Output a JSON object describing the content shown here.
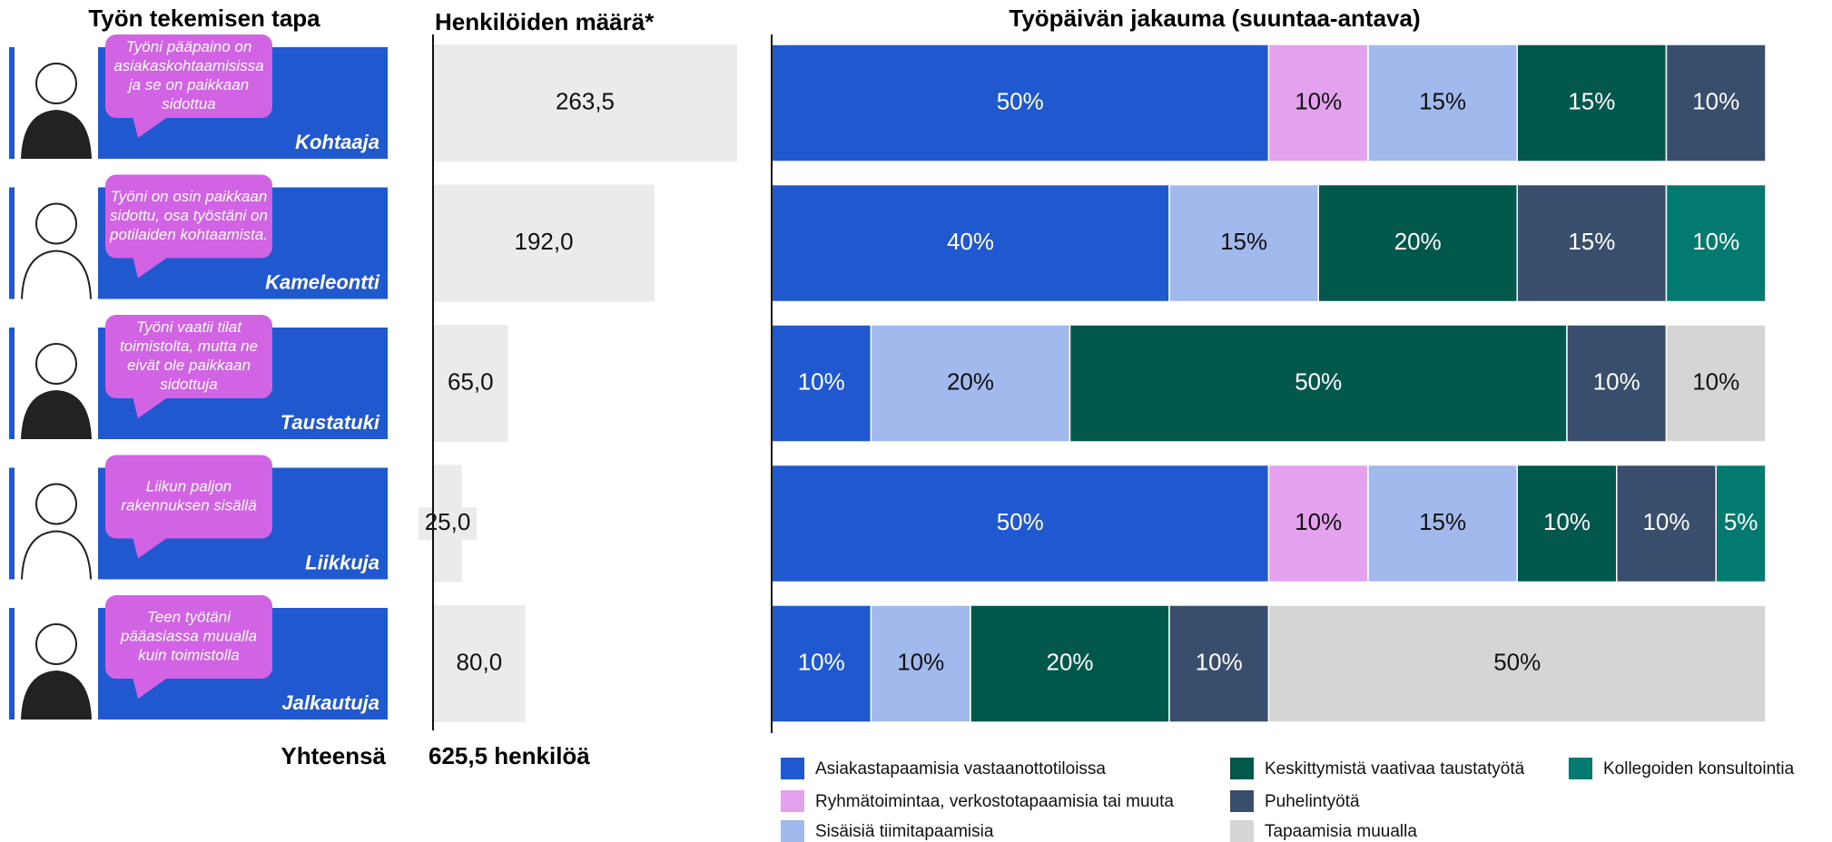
{
  "headers": {
    "left": "Työn tekemisen tapa"
  },
  "personas": [
    {
      "quote_lines": [
        "Työni pääpaino on",
        "asiakaskohtaamisissa",
        "ja se on paikkaan",
        "sidottua"
      ]
    },
    {
      "quote_lines": [
        "Työni on osin paikkaan",
        "sidottu, osa työstäni on",
        "potilaiden kohtaamista."
      ]
    },
    {
      "quote_lines": [
        "Työni vaatii tilat",
        "toimistolta, mutta ne",
        "eivät ole paikkaan",
        "sidottuja"
      ]
    },
    {
      "quote_lines": [
        "Liikun paljon",
        "rakennuksen sisällä"
      ]
    },
    {
      "quote_lines": [
        "Teen työtäni",
        "pääasiassa muualla",
        "kuin toimistolla"
      ]
    }
  ],
  "total": {
    "label": "Yhteensä",
    "value": "625,5 henkilöä"
  },
  "chart_data": [
    {
      "type": "hbar",
      "title": "Henkilöiden määrä*",
      "categories": [
        "Kohtaaja",
        "Kameleontti",
        "Taustatuki",
        "Liikkuja",
        "Jalkautuja"
      ],
      "values": [
        263.5,
        192.0,
        65.0,
        25.0,
        80.0
      ],
      "value_labels": [
        "263,5",
        "192,0",
        "65,0",
        "25,0",
        "80,0"
      ],
      "color": "#ebebeb",
      "xlim": [
        0,
        263.5
      ]
    },
    {
      "type": "stacked_hbar",
      "title": "Työpäivän jakauma (suuntaa-antava)",
      "xlim": [
        0,
        100
      ],
      "series": [
        {
          "name": "Asiakastapaamisia vastaanottotiloissa",
          "color": "#2058d0",
          "values": [
            50,
            40,
            10,
            50,
            10
          ],
          "value_labels": [
            "50%",
            "40%",
            "10%",
            "50%",
            "10%"
          ]
        },
        {
          "name": "Ryhmätoimintaa, verkostotapaamisia tai muuta",
          "color": "#e4a2ee",
          "values": [
            10,
            null,
            null,
            10,
            null
          ],
          "value_labels": [
            "10%",
            null,
            null,
            "10%",
            null
          ]
        },
        {
          "name": "Sisäisiä tiimitapaamisia",
          "color": "#a2b9ee",
          "values": [
            15,
            15,
            20,
            15,
            10
          ],
          "value_labels": [
            "15%",
            "15%",
            "20%",
            "15%",
            "10%"
          ]
        },
        {
          "name": "Keskittymistä vaativaa taustatyötä",
          "color": "#02594b",
          "values": [
            15,
            20,
            50,
            10,
            20
          ],
          "value_labels": [
            "15%",
            "20%",
            "50%",
            "10%",
            "20%"
          ]
        },
        {
          "name": "Puhelintyötä",
          "color": "#394d6d",
          "values": [
            10,
            15,
            10,
            10,
            10
          ],
          "value_labels": [
            "10%",
            "15%",
            "10%",
            "10%",
            "10%"
          ]
        },
        {
          "name": "Tapaamisia muualla",
          "color": "#d5d5d5",
          "values": [
            null,
            null,
            10,
            null,
            50
          ],
          "value_labels": [
            null,
            null,
            "10%",
            null,
            "50%"
          ]
        },
        {
          "name": "Kollegoiden konsultointia",
          "color": "#027a70",
          "values": [
            null,
            10,
            null,
            5,
            null
          ],
          "value_labels": [
            null,
            "10%",
            null,
            "5%",
            null
          ]
        }
      ]
    }
  ]
}
